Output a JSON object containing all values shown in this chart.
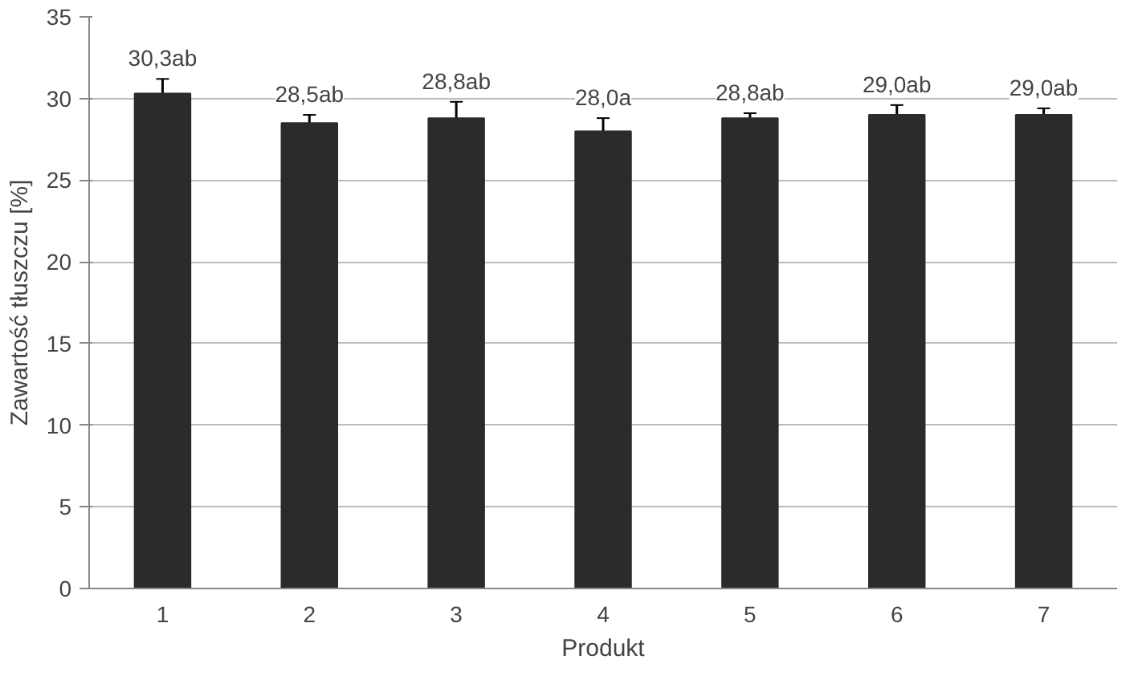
{
  "chart_data": {
    "type": "bar",
    "xlabel": "Produkt",
    "ylabel": "Zawartość tłuszczu [%]",
    "categories": [
      "1",
      "2",
      "3",
      "4",
      "5",
      "6",
      "7"
    ],
    "values": [
      30.3,
      28.5,
      28.8,
      28.0,
      28.8,
      29.0,
      29.0
    ],
    "color": "#2b2b2b",
    "errors": [
      0.9,
      0.5,
      1.0,
      0.8,
      0.3,
      0.6,
      0.4
    ],
    "value_labels": [
      "30,3ab",
      "28,5ab",
      "28,8ab",
      "28,0a",
      "28,8ab",
      "29,0ab",
      "29,0ab"
    ],
    "ylim": [
      0,
      35
    ],
    "yticks": [
      0,
      5,
      10,
      15,
      20,
      25,
      30,
      35
    ],
    "grid": "y"
  }
}
